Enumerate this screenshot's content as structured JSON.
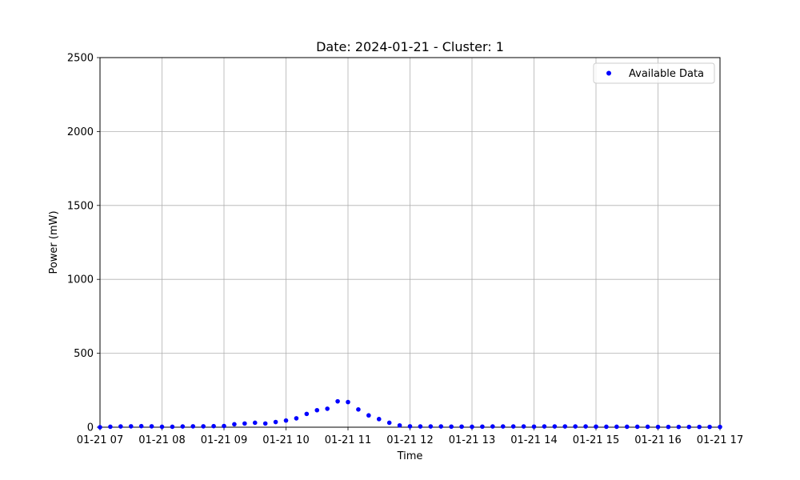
{
  "chart_data": {
    "type": "scatter",
    "title": "Date: 2024-01-21 - Cluster: 1",
    "xlabel": "Time",
    "ylabel": "Power (mW)",
    "xlim": [
      "2024-01-21 07:00",
      "2024-01-21 17:00"
    ],
    "ylim": [
      0,
      2500
    ],
    "x_ticks": [
      "01-21 07",
      "01-21 08",
      "01-21 09",
      "01-21 10",
      "01-21 11",
      "01-21 12",
      "01-21 13",
      "01-21 14",
      "01-21 15",
      "01-21 16",
      "01-21 17"
    ],
    "y_ticks": [
      0,
      500,
      1000,
      1500,
      2000,
      2500
    ],
    "grid": true,
    "legend": "upper-right",
    "series": [
      {
        "name": "Available Data",
        "color": "#0000ff",
        "marker": "circle",
        "x": [
          "2024-01-21 07:00",
          "2024-01-21 07:10",
          "2024-01-21 07:20",
          "2024-01-21 07:30",
          "2024-01-21 07:40",
          "2024-01-21 07:50",
          "2024-01-21 08:00",
          "2024-01-21 08:10",
          "2024-01-21 08:20",
          "2024-01-21 08:30",
          "2024-01-21 08:40",
          "2024-01-21 08:50",
          "2024-01-21 09:00",
          "2024-01-21 09:10",
          "2024-01-21 09:20",
          "2024-01-21 09:30",
          "2024-01-21 09:40",
          "2024-01-21 09:50",
          "2024-01-21 10:00",
          "2024-01-21 10:10",
          "2024-01-21 10:20",
          "2024-01-21 10:30",
          "2024-01-21 10:40",
          "2024-01-21 10:50",
          "2024-01-21 11:00",
          "2024-01-21 11:10",
          "2024-01-21 11:20",
          "2024-01-21 11:30",
          "2024-01-21 11:40",
          "2024-01-21 11:50",
          "2024-01-21 12:00",
          "2024-01-21 12:10",
          "2024-01-21 12:20",
          "2024-01-21 12:30",
          "2024-01-21 12:40",
          "2024-01-21 12:50",
          "2024-01-21 13:00",
          "2024-01-21 13:10",
          "2024-01-21 13:20",
          "2024-01-21 13:30",
          "2024-01-21 13:40",
          "2024-01-21 13:50",
          "2024-01-21 14:00",
          "2024-01-21 14:10",
          "2024-01-21 14:20",
          "2024-01-21 14:30",
          "2024-01-21 14:40",
          "2024-01-21 14:50",
          "2024-01-21 15:00",
          "2024-01-21 15:10",
          "2024-01-21 15:20",
          "2024-01-21 15:30",
          "2024-01-21 15:40",
          "2024-01-21 15:50",
          "2024-01-21 16:00",
          "2024-01-21 16:10",
          "2024-01-21 16:20",
          "2024-01-21 16:30",
          "2024-01-21 16:40",
          "2024-01-21 16:50",
          "2024-01-21 17:00"
        ],
        "y": [
          0,
          3,
          5,
          6,
          7,
          6,
          3,
          3,
          5,
          6,
          6,
          7,
          8,
          20,
          25,
          30,
          25,
          35,
          45,
          60,
          90,
          115,
          125,
          175,
          170,
          120,
          80,
          55,
          30,
          12,
          6,
          5,
          5,
          5,
          4,
          4,
          3,
          4,
          5,
          5,
          5,
          5,
          4,
          5,
          5,
          5,
          5,
          5,
          4,
          3,
          3,
          3,
          3,
          3,
          2,
          2,
          2,
          2,
          2,
          2,
          2
        ]
      }
    ]
  }
}
